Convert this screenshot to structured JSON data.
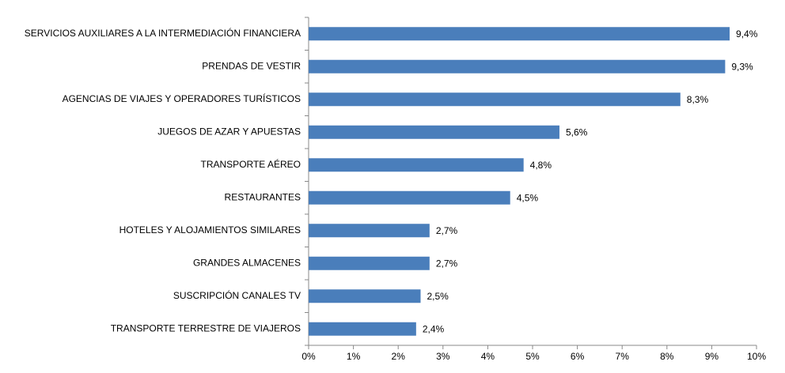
{
  "chart_data": {
    "type": "bar",
    "categories": [
      "SERVICIOS AUXILIARES A LA INTERMEDIACIÓN FINANCIERA",
      "PRENDAS DE VESTIR",
      "AGENCIAS DE VIAJES Y OPERADORES TURÍSTICOS",
      "JUEGOS DE AZAR Y APUESTAS",
      "TRANSPORTE AÉREO",
      "RESTAURANTES",
      "HOTELES  Y ALOJAMIENTOS SIMILARES",
      "GRANDES ALMACENES",
      "SUSCRIPCIÓN CANALES TV",
      "TRANSPORTE TERRESTRE DE VIAJEROS"
    ],
    "values": [
      9.4,
      9.3,
      8.3,
      5.6,
      4.8,
      4.5,
      2.7,
      2.7,
      2.5,
      2.4
    ],
    "value_labels": [
      "9,4%",
      "9,3%",
      "8,3%",
      "5,6%",
      "4,8%",
      "4,5%",
      "2,7%",
      "2,7%",
      "2,5%",
      "2,4%"
    ],
    "color": "#4a7ebb",
    "xlim": [
      0,
      10
    ],
    "xticks": [
      {
        "value": 0,
        "label": "0%"
      },
      {
        "value": 1,
        "label": "1%"
      },
      {
        "value": 2,
        "label": "2%"
      },
      {
        "value": 3,
        "label": "3%"
      },
      {
        "value": 4,
        "label": "4%"
      },
      {
        "value": 5,
        "label": "5%"
      },
      {
        "value": 6,
        "label": "6%"
      },
      {
        "value": 7,
        "label": "7%"
      },
      {
        "value": 8,
        "label": "8%"
      },
      {
        "value": 9,
        "label": "9%"
      },
      {
        "value": 10,
        "label": "10%"
      }
    ]
  }
}
